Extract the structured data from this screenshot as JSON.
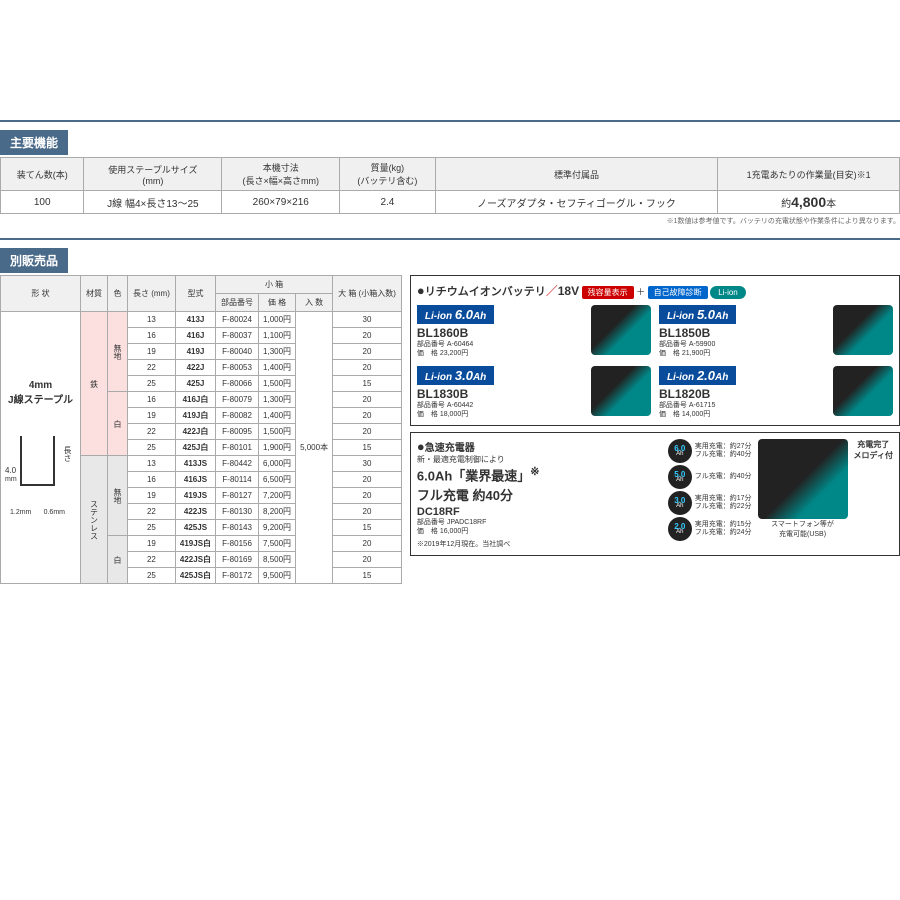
{
  "sections": {
    "spec": "主要機能",
    "accessories": "別販売品"
  },
  "spec_table": {
    "headers": [
      "装てん数(本)",
      "使用ステープルサイズ\n(mm)",
      "本機寸法\n(長さ×幅×高さmm)",
      "質量(kg)\n(バッテリ含む)",
      "標準付属品",
      "1充電あたりの作業量(目安)※1"
    ],
    "row": [
      "100",
      "J線 幅4×長さ13～25",
      "260×79×216",
      "2.4",
      "ノーズアダプタ・セフティゴーグル・フック",
      "約4,800本"
    ]
  },
  "spec_note": "※1数値は参考値です。バッテリの充電状態や作業条件により異なります。",
  "staple": {
    "shape_title": "4mm\nJ線ステープル",
    "dims": {
      "width": "4.0",
      "unit": "mm",
      "left": "1.2mm",
      "right": "0.6mm",
      "length_label": "長さ"
    },
    "headers": [
      "形 状",
      "材質",
      "色",
      "長さ\n(mm)",
      "型式",
      "部品番号",
      "価 格",
      "入 数",
      "大 箱\n(小箱入数)"
    ],
    "sub_header": "小 箱",
    "box_qty": "5,000本",
    "materials": [
      "鉄",
      "ステンレス"
    ],
    "colors": [
      "無地",
      "白",
      "無地",
      "白"
    ],
    "rows": [
      {
        "mat": 0,
        "col": 0,
        "len": "13",
        "model": "413J",
        "part": "F-80024",
        "price": "1,000円",
        "qty": "30"
      },
      {
        "mat": 0,
        "col": 0,
        "len": "16",
        "model": "416J",
        "part": "F-80037",
        "price": "1,100円",
        "qty": "20"
      },
      {
        "mat": 0,
        "col": 0,
        "len": "19",
        "model": "419J",
        "part": "F-80040",
        "price": "1,300円",
        "qty": "20"
      },
      {
        "mat": 0,
        "col": 0,
        "len": "22",
        "model": "422J",
        "part": "F-80053",
        "price": "1,400円",
        "qty": "20"
      },
      {
        "mat": 0,
        "col": 0,
        "len": "25",
        "model": "425J",
        "part": "F-80066",
        "price": "1,500円",
        "qty": "15"
      },
      {
        "mat": 0,
        "col": 1,
        "len": "16",
        "model": "416J白",
        "part": "F-80079",
        "price": "1,300円",
        "qty": "20"
      },
      {
        "mat": 0,
        "col": 1,
        "len": "19",
        "model": "419J白",
        "part": "F-80082",
        "price": "1,400円",
        "qty": "20"
      },
      {
        "mat": 0,
        "col": 1,
        "len": "22",
        "model": "422J白",
        "part": "F-80095",
        "price": "1,500円",
        "qty": "20"
      },
      {
        "mat": 0,
        "col": 1,
        "len": "25",
        "model": "425J白",
        "part": "F-80101",
        "price": "1,900円",
        "qty": "15"
      },
      {
        "mat": 1,
        "col": 2,
        "len": "13",
        "model": "413JS",
        "part": "F-80442",
        "price": "6,000円",
        "qty": "30"
      },
      {
        "mat": 1,
        "col": 2,
        "len": "16",
        "model": "416JS",
        "part": "F-80114",
        "price": "6,500円",
        "qty": "20"
      },
      {
        "mat": 1,
        "col": 2,
        "len": "19",
        "model": "419JS",
        "part": "F-80127",
        "price": "7,200円",
        "qty": "20"
      },
      {
        "mat": 1,
        "col": 2,
        "len": "22",
        "model": "422JS",
        "part": "F-80130",
        "price": "8,200円",
        "qty": "20"
      },
      {
        "mat": 1,
        "col": 2,
        "len": "25",
        "model": "425JS",
        "part": "F-80143",
        "price": "9,200円",
        "qty": "15"
      },
      {
        "mat": 1,
        "col": 3,
        "len": "19",
        "model": "419JS白",
        "part": "F-80156",
        "price": "7,500円",
        "qty": "20"
      },
      {
        "mat": 1,
        "col": 3,
        "len": "22",
        "model": "422JS白",
        "part": "F-80169",
        "price": "8,500円",
        "qty": "20"
      },
      {
        "mat": 1,
        "col": 3,
        "len": "25",
        "model": "425JS白",
        "part": "F-80172",
        "price": "9,500円",
        "qty": "15"
      }
    ]
  },
  "battery": {
    "title": "リチウムイオンバッテリ",
    "voltage": "18V",
    "badges": {
      "red": "残容量表示",
      "plus": "＋",
      "blue": "自己故障診断",
      "liion": "Li-ion"
    },
    "items": [
      {
        "ah": "6.0",
        "model": "BL1860B",
        "part": "A-60464",
        "price": "23,200円"
      },
      {
        "ah": "5.0",
        "model": "BL1850B",
        "part": "A-59900",
        "price": "21,900円"
      },
      {
        "ah": "3.0",
        "model": "BL1830B",
        "part": "A-60442",
        "price": "18,000円"
      },
      {
        "ah": "2.0",
        "model": "BL1820B",
        "part": "A-61715",
        "price": "14,000円"
      }
    ],
    "labels": {
      "part": "部品番号",
      "price": "価　格"
    }
  },
  "charger": {
    "title": "急速充電器",
    "sub": "新・最適充電制御により",
    "big1": "6.0Ah「業界最速」",
    "sup": "※",
    "big2": "フル充電 約40分",
    "model": "DC18RF",
    "part": "JPADC18RF",
    "price": "16,000円",
    "note": "※2019年12月現在。当社調べ",
    "melody": "充電完了\nメロディ付",
    "usb": "スマートフォン等が\n充電可能(USB)",
    "times": [
      {
        "ah": "6.0",
        "t1": "実用充電：約27分",
        "t2": "フル充電：約40分"
      },
      {
        "ah": "5.0",
        "t1": "",
        "t2": "フル充電：約40分"
      },
      {
        "ah": "3.0",
        "t1": "実用充電：約17分",
        "t2": "フル充電：約22分"
      },
      {
        "ah": "2.0",
        "t1": "実用充電：約15分",
        "t2": "フル充電：約24分"
      }
    ]
  }
}
